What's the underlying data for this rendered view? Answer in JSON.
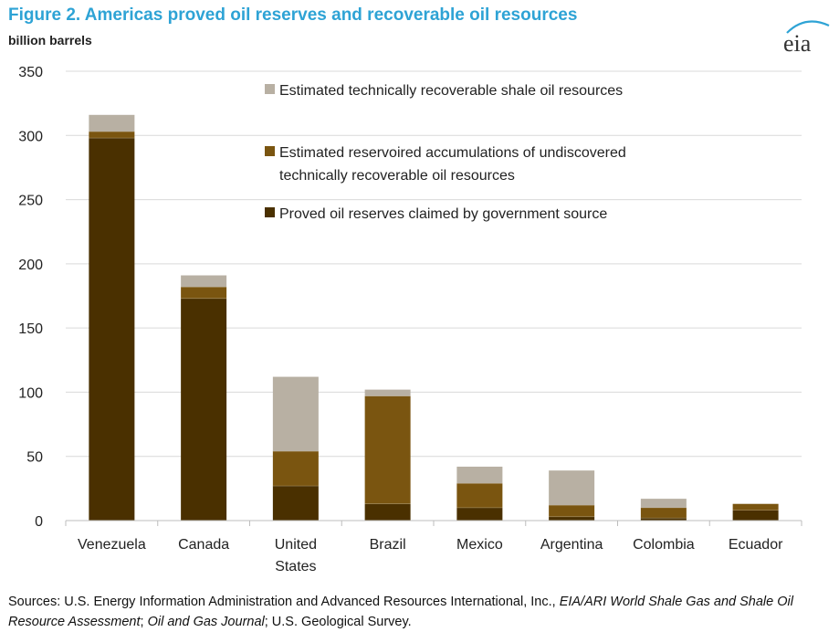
{
  "header": {
    "title": "Figure 2. Americas proved oil reserves and recoverable oil resources",
    "unit_label": "billion barrels",
    "logo_text": "eia"
  },
  "chart_data": {
    "type": "bar",
    "stacked": true,
    "categories": [
      [
        "Venezuela"
      ],
      [
        "Canada"
      ],
      [
        "United",
        "States"
      ],
      [
        "Brazil"
      ],
      [
        "Mexico"
      ],
      [
        "Argentina"
      ],
      [
        "Colombia"
      ],
      [
        "Ecuador"
      ]
    ],
    "ylim": [
      0,
      350
    ],
    "yticks": [
      0,
      50,
      100,
      150,
      200,
      250,
      300,
      350
    ],
    "grid": true,
    "legend_position": "top-right",
    "series": [
      {
        "name": "Proved oil reserves claimed by government source",
        "color": "#4A3000",
        "values": [
          298,
          173,
          27,
          13,
          10,
          3,
          2,
          8
        ]
      },
      {
        "name": "Estimated reservoired accumulations of undiscovered technically recoverable oil resources",
        "color": "#7A5510",
        "values": [
          5,
          9,
          27,
          84,
          19,
          9,
          8,
          5
        ]
      },
      {
        "name": "Estimated technically recoverable shale oil resources",
        "color": "#B8B0A3",
        "values": [
          13,
          9,
          58,
          5,
          13,
          27,
          7,
          0
        ]
      }
    ],
    "legend_order": [
      2,
      1,
      0
    ],
    "legend_lines": [
      [
        "Estimated technically recoverable shale oil resources"
      ],
      [
        "Estimated reservoired accumulations of undiscovered",
        "technically recoverable oil resources"
      ],
      [
        "Proved oil reserves claimed by government source"
      ]
    ]
  },
  "footer": {
    "source_prefix": "Sources: U.S. Energy Information Administration and Advanced Resources International, Inc., ",
    "source_italic_1": "EIA/ARI World Shale Gas and Shale Oil Resource Assessment",
    "source_mid": "; ",
    "source_italic_2": "Oil and Gas Journal",
    "source_suffix": "; U.S. Geological Survey."
  }
}
